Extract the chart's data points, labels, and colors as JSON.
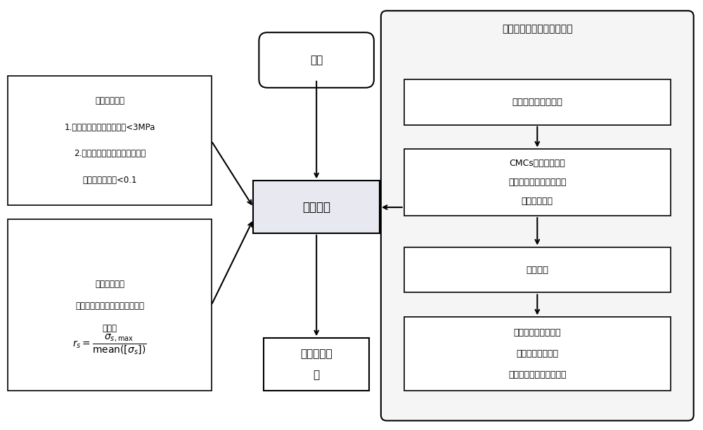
{
  "title": "试验件偏轴加载应力场计算",
  "start_label": "开始",
  "center_box": "优化程序",
  "output_box": "输出优化结\n果",
  "left_box1_title": "设定约束条件",
  "left_box1_lines": [
    "1.试验段轴向应力场均方差<3MPa",
    "2.试验段最大面内剪切应力与平",
    "均轴向应力比值<0.1"
  ],
  "left_box2_title": "设定优化目标",
  "left_box2_lines": [
    "最大轴向应力与平均轴向应力比",
    "值最小"
  ],
  "left_box2_formula": "r_s = σ_{s,max} / mean([σ_s])",
  "right_box1": "试验件的参数化模型",
  "right_box2_lines": [
    "CMCs弹性常数分析",
    "并设置材料属性，建立偏",
    "轴局部坐标系"
  ],
  "right_box3": "加载求解",
  "right_box4_lines": [
    "试验段最大轴向应力",
    "试验段轴向应力场",
    "试验段最大面内剪切应力"
  ],
  "bg_color": "#ffffff",
  "box_color": "#ffffff",
  "box_edge": "#000000",
  "right_region_bg": "#f0f0f0",
  "arrow_color": "#000000"
}
